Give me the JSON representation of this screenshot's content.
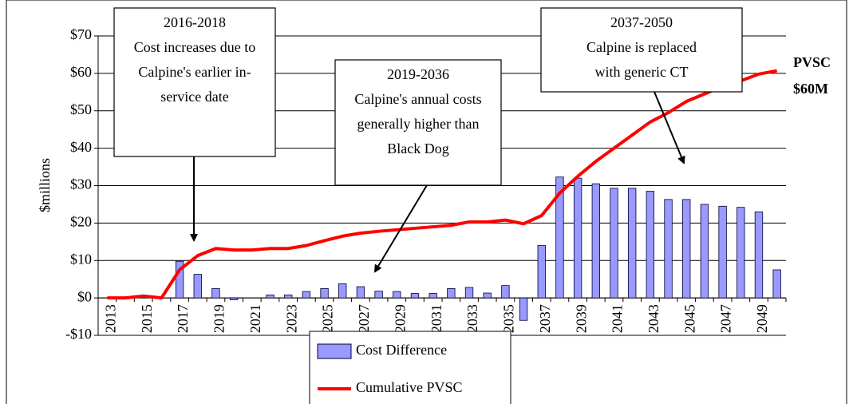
{
  "chart_data": {
    "type": "bar",
    "y_label": "$millions",
    "categories": [
      "2013",
      null,
      "2015",
      null,
      "2017",
      null,
      "2019",
      null,
      "2021",
      null,
      "2023",
      null,
      "2025",
      null,
      "2027",
      null,
      "2029",
      null,
      "2031",
      null,
      "2033",
      null,
      "2035",
      null,
      "2037",
      null,
      "2039",
      null,
      "2041",
      null,
      "2043",
      null,
      "2045",
      null,
      "2047",
      null,
      "2049",
      null
    ],
    "series": [
      {
        "name": "Cost Difference",
        "type": "bar",
        "color": "#9999ff",
        "values": [
          0,
          0,
          0,
          0,
          9.8,
          6.3,
          2.5,
          -0.5,
          0,
          0.8,
          0.8,
          1.7,
          2.5,
          3.8,
          3,
          1.8,
          1.7,
          1.2,
          1.2,
          2.5,
          2.8,
          1.3,
          3.3,
          -6,
          14,
          32.3,
          32,
          30.5,
          29.3,
          29.3,
          28.5,
          26.3,
          26.3,
          25,
          24.5,
          24.2,
          23,
          7.5
        ]
      },
      {
        "name": "Cumulative PVSC",
        "type": "line",
        "color": "#ff0000",
        "values": [
          0,
          0,
          0.5,
          0,
          7.5,
          11.3,
          13.2,
          12.8,
          12.8,
          13.2,
          13.2,
          14,
          15.3,
          16.5,
          17.3,
          17.8,
          18.2,
          18.6,
          19,
          19.4,
          20.3,
          20.3,
          20.8,
          19.8,
          22,
          28,
          32.5,
          36.5,
          40,
          43.5,
          47,
          49.5,
          52.5,
          54.5,
          56.5,
          58,
          59.8,
          60.7
        ]
      }
    ],
    "ylim": [
      -10,
      70
    ],
    "yticks": [
      {
        "value": -10,
        "label": "-$10"
      },
      {
        "value": 0,
        "label": "$0"
      },
      {
        "value": 10,
        "label": "$10"
      },
      {
        "value": 20,
        "label": "$20"
      },
      {
        "value": 30,
        "label": "$30"
      },
      {
        "value": 40,
        "label": "$40"
      },
      {
        "value": 50,
        "label": "$50"
      },
      {
        "value": 60,
        "label": "$60"
      },
      {
        "value": 70,
        "label": "$70"
      }
    ],
    "grid": true,
    "legend": "bottom",
    "annotations": [
      {
        "lines": [
          "2016-2018",
          "Cost increases due to",
          "Calpine's earlier in-",
          "service date"
        ]
      },
      {
        "lines": [
          "2019-2036",
          "Calpine's annual costs",
          "generally higher than",
          "Black Dog"
        ]
      },
      {
        "lines": [
          "2037-2050",
          "Calpine is replaced",
          "with generic CT"
        ]
      },
      {
        "lines": [
          "PVSC",
          "$60M"
        ]
      }
    ]
  }
}
